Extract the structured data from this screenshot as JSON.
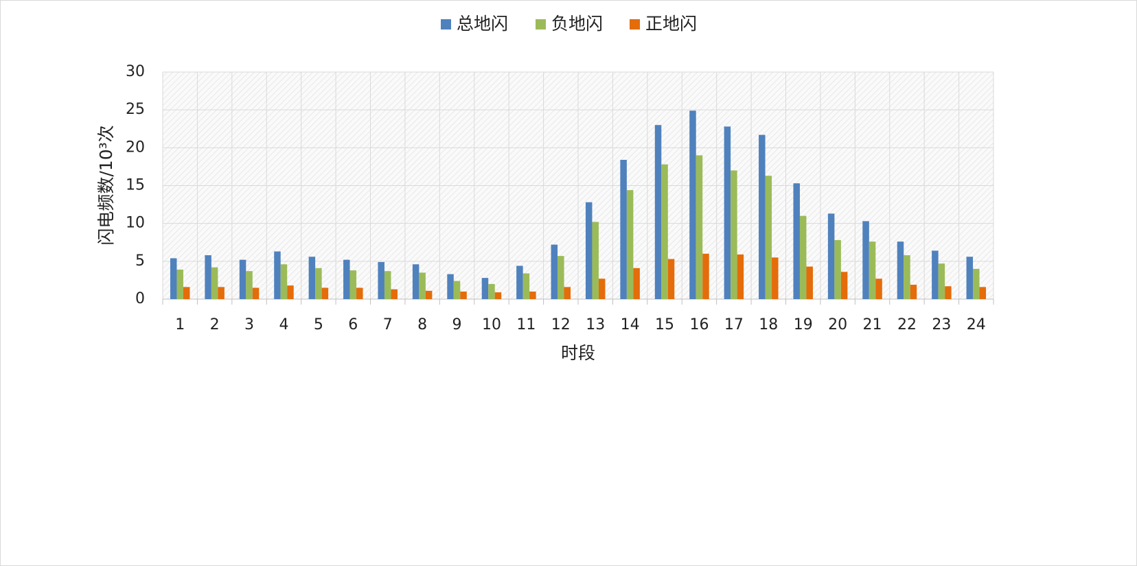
{
  "chart_data": {
    "type": "bar",
    "y_label": "闪电频数/10³次",
    "x_label": "时段",
    "categories": [
      "1",
      "2",
      "3",
      "4",
      "5",
      "6",
      "7",
      "8",
      "9",
      "10",
      "11",
      "12",
      "13",
      "14",
      "15",
      "16",
      "17",
      "18",
      "19",
      "20",
      "21",
      "22",
      "23",
      "24"
    ],
    "series": [
      {
        "name": "总地闪",
        "color": "#4f81bd",
        "values": [
          5.4,
          5.8,
          5.2,
          6.3,
          5.6,
          5.2,
          4.9,
          4.6,
          3.3,
          2.8,
          4.4,
          7.2,
          12.8,
          18.4,
          23.0,
          24.9,
          22.8,
          21.7,
          15.3,
          11.3,
          10.3,
          7.6,
          6.4,
          5.6
        ]
      },
      {
        "name": "负地闪",
        "color": "#9bbb59",
        "values": [
          3.9,
          4.2,
          3.7,
          4.6,
          4.1,
          3.8,
          3.7,
          3.5,
          2.4,
          2.0,
          3.4,
          5.7,
          10.2,
          14.4,
          17.8,
          19.0,
          17.0,
          16.3,
          11.0,
          7.8,
          7.6,
          5.8,
          4.7,
          4.0
        ]
      },
      {
        "name": "正地闪",
        "color": "#e46c0a",
        "values": [
          1.6,
          1.6,
          1.5,
          1.8,
          1.5,
          1.5,
          1.3,
          1.1,
          1.0,
          0.9,
          1.0,
          1.6,
          2.7,
          4.1,
          5.3,
          6.0,
          5.9,
          5.5,
          4.3,
          3.6,
          2.7,
          1.9,
          1.7,
          1.6
        ]
      }
    ],
    "ylim": [
      0,
      30
    ],
    "yticks": [
      0,
      5,
      10,
      15,
      20,
      25,
      30
    ],
    "grid": true,
    "legend": "top"
  }
}
